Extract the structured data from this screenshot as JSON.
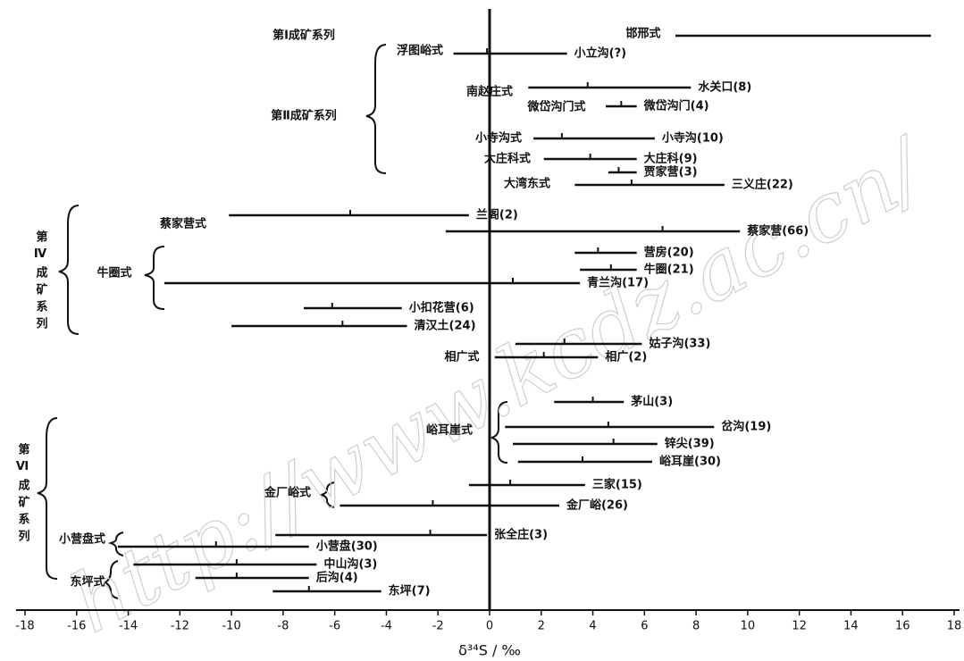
{
  "chart_data": {
    "type": "range",
    "xlabel": "δ³⁴S / ‰",
    "xlim": [
      -18,
      18
    ],
    "xticks": [
      -18,
      -16,
      -14,
      -12,
      -10,
      -8,
      -6,
      -4,
      -2,
      0,
      2,
      4,
      6,
      8,
      10,
      12,
      14,
      16,
      18
    ],
    "color": "#111111",
    "watermark": "http://www.kcdz.ac.cn/",
    "series_labels": [
      "第Ⅰ成矿系列",
      "第Ⅱ成矿系列",
      "第Ⅳ成矿系列",
      "第Ⅵ成矿系列"
    ],
    "type_labels": [
      "邯邢式",
      "浮图峪式",
      "南赵庄式",
      "微岱沟门式",
      "小寺沟式",
      "大庄科式",
      "大湾东式",
      "蔡家营式",
      "牛圈式",
      "相广式",
      "峪耳崖式",
      "金厂峪式",
      "小营盘式",
      "东坪式"
    ],
    "rows": [
      {
        "min": 7.2,
        "max": 17.1
      },
      {
        "label": "小立沟(?)",
        "min": -1.4,
        "max": 3.0,
        "mean": -0.1
      },
      {
        "label": "水关口(8)",
        "min": 1.5,
        "max": 7.8,
        "mean": 3.8
      },
      {
        "label": "微岱沟门(4)",
        "min": 4.5,
        "max": 5.7,
        "mean": 5.1
      },
      {
        "label": "小寺沟(10)",
        "min": 1.7,
        "max": 6.4,
        "mean": 2.8
      },
      {
        "label": "大庄科(9)",
        "min": 2.1,
        "max": 5.7,
        "mean": 3.9
      },
      {
        "label": "贾家营(3)",
        "min": 4.6,
        "max": 5.7,
        "mean": 5.0
      },
      {
        "label": "三义庄(22)",
        "min": 3.3,
        "max": 9.1,
        "mean": 5.5
      },
      {
        "label": "兰阁(2)",
        "min": -10.1,
        "max": -0.8,
        "mean": -5.4
      },
      {
        "label": "蔡家营(66)",
        "min": -1.7,
        "max": 9.7,
        "mean": 6.7
      },
      {
        "label": "营房(20)",
        "min": 3.3,
        "max": 5.7,
        "mean": 4.2
      },
      {
        "label": "牛圈(21)",
        "min": 3.5,
        "max": 5.7,
        "mean": 4.7
      },
      {
        "label": "青兰沟(17)",
        "min": -12.6,
        "max": 3.5,
        "mean": 0.9
      },
      {
        "label": "小扣花营(6)",
        "min": -7.2,
        "max": -3.4,
        "mean": -6.1
      },
      {
        "label": "清汉土(24)",
        "min": -10.0,
        "max": -3.2,
        "mean": -5.7
      },
      {
        "label": "姑子沟(33)",
        "min": 1.0,
        "max": 5.9,
        "mean": 2.9
      },
      {
        "label": "相广(2)",
        "min": 0.2,
        "max": 4.2,
        "mean": 2.1
      },
      {
        "label": "茅山(3)",
        "min": 2.5,
        "max": 5.2,
        "mean": 4.0
      },
      {
        "label": "岔沟(19)",
        "min": 0.6,
        "max": 8.7,
        "mean": 4.6
      },
      {
        "label": "锌尖(39)",
        "min": 0.9,
        "max": 6.5,
        "mean": 4.8
      },
      {
        "label": "峪耳崖(30)",
        "min": 1.1,
        "max": 6.3,
        "mean": 3.6
      },
      {
        "label": "三家(15)",
        "min": -0.8,
        "max": 3.7,
        "mean": 0.8
      },
      {
        "label": "金厂峪(26)",
        "min": -5.8,
        "max": 2.7,
        "mean": -2.2
      },
      {
        "label": "张全庄(3)",
        "min": -8.3,
        "max": -0.1,
        "mean": -2.3
      },
      {
        "label": "小营盘(30)",
        "min": -14.4,
        "max": -7.0,
        "mean": -10.6
      },
      {
        "label": "中山沟(3)",
        "min": -13.8,
        "max": -6.7,
        "mean": -9.8
      },
      {
        "label": "后沟(4)",
        "min": -11.4,
        "max": -7.0,
        "mean": -9.8
      },
      {
        "label": "东坪(7)",
        "min": -8.4,
        "max": -4.2,
        "mean": -7.0
      }
    ]
  }
}
